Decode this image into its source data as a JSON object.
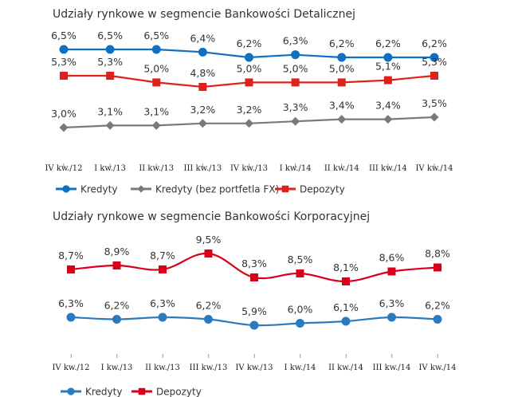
{
  "chart_data": [
    {
      "type": "line",
      "title": "Udziały rynkowe w segmencie Bankowości Detalicznej",
      "categories": [
        "IV kw./12",
        "I kw./13",
        "II kw./13",
        "III kw./13",
        "IV kw./13",
        "I kw./14",
        "II kw./14",
        "III kw./14",
        "IV kw./14"
      ],
      "xlabel": "",
      "ylabel": "",
      "grid": false,
      "legend": "bottom-left",
      "series": [
        {
          "name": "Kredyty",
          "color": "#0f6fc0",
          "marker": "circle",
          "values": [
            6.5,
            6.5,
            6.5,
            6.4,
            6.2,
            6.3,
            6.2,
            6.2,
            6.2
          ],
          "labels": [
            "6,5%",
            "6,5%",
            "6,5%",
            "6,4%",
            "6,2%",
            "6,3%",
            "6,2%",
            "6,2%",
            "6,2%"
          ]
        },
        {
          "name": "Kredyty (bez portfetla FX)",
          "color": "#7a7a7a",
          "marker": "diamond",
          "values": [
            3.0,
            3.1,
            3.1,
            3.2,
            3.2,
            3.3,
            3.4,
            3.4,
            3.5
          ],
          "labels": [
            "3,0%",
            "3,1%",
            "3,1%",
            "3,2%",
            "3,2%",
            "3,3%",
            "3,4%",
            "3,4%",
            "3,5%"
          ]
        },
        {
          "name": "Depozyty",
          "color": "#e0201c",
          "marker": "square",
          "values": [
            5.3,
            5.3,
            5.0,
            4.8,
            5.0,
            5.0,
            5.0,
            5.1,
            5.3
          ],
          "labels": [
            "5,3%",
            "5,3%",
            "5,0%",
            "4,8%",
            "5,0%",
            "5,0%",
            "5,0%",
            "5,1%",
            "5,3%"
          ]
        }
      ]
    },
    {
      "type": "line",
      "title": "Udziały rynkowe w segmencie Bankowości Korporacyjnej",
      "categories": [
        "IV kw./12",
        "I kw./13",
        "II kw./13",
        "III kw./13",
        "IV kw./13",
        "I kw./14",
        "II kw./14",
        "III kw./14",
        "IV kw./14"
      ],
      "xlabel": "",
      "ylabel": "",
      "grid": false,
      "legend": "bottom-left",
      "series": [
        {
          "name": "Kredyty",
          "color": "#2a7ac0",
          "marker": "circle",
          "values": [
            6.3,
            6.2,
            6.3,
            6.2,
            5.9,
            6.0,
            6.1,
            6.3,
            6.2
          ],
          "labels": [
            "6,3%",
            "6,2%",
            "6,3%",
            "6,2%",
            "5,9%",
            "6,0%",
            "6,1%",
            "6,3%",
            "6,2%"
          ]
        },
        {
          "name": "Depozyty",
          "color": "#d9001b",
          "marker": "square",
          "values": [
            8.7,
            8.9,
            8.7,
            9.5,
            8.3,
            8.5,
            8.1,
            8.6,
            8.8
          ],
          "labels": [
            "8,7%",
            "8,9%",
            "8,7%",
            "9,5%",
            "8,3%",
            "8,5%",
            "8,1%",
            "8,6%",
            "8,8%"
          ]
        }
      ]
    }
  ]
}
